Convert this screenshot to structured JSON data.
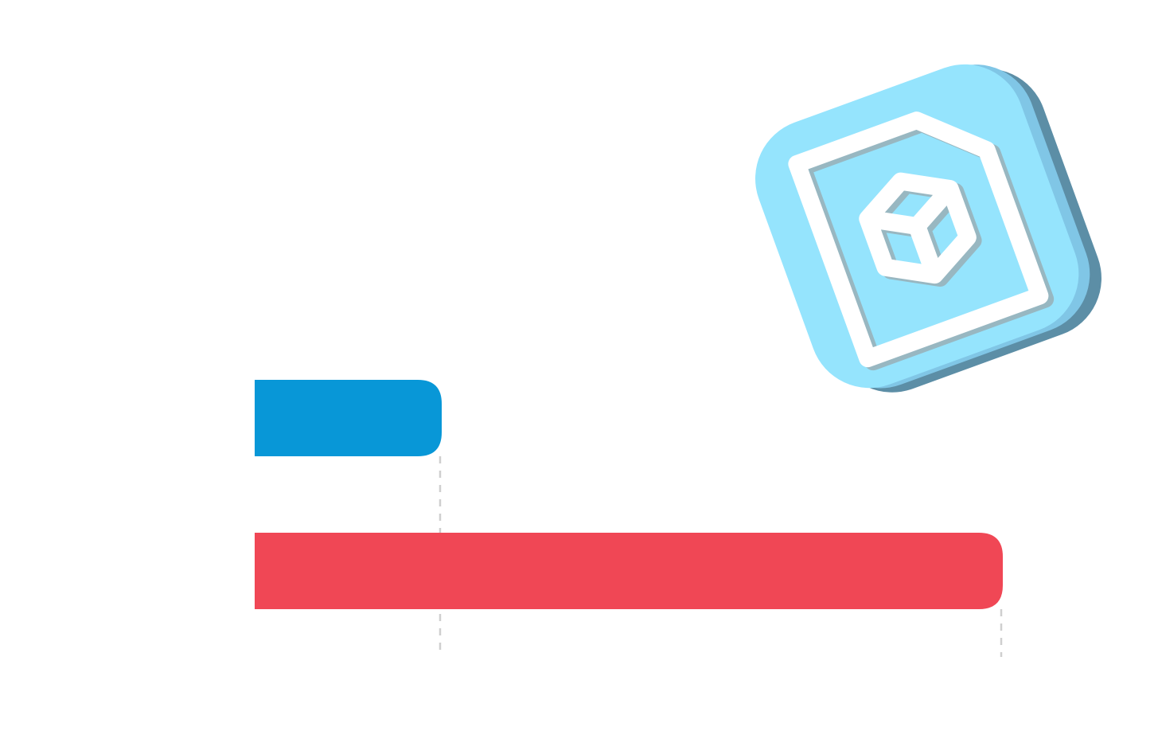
{
  "chart_data": {
    "type": "bar",
    "orientation": "horizontal",
    "values": [
      25,
      100
    ],
    "colors": [
      "#0897d7",
      "#f04755"
    ],
    "guides": true
  }
}
